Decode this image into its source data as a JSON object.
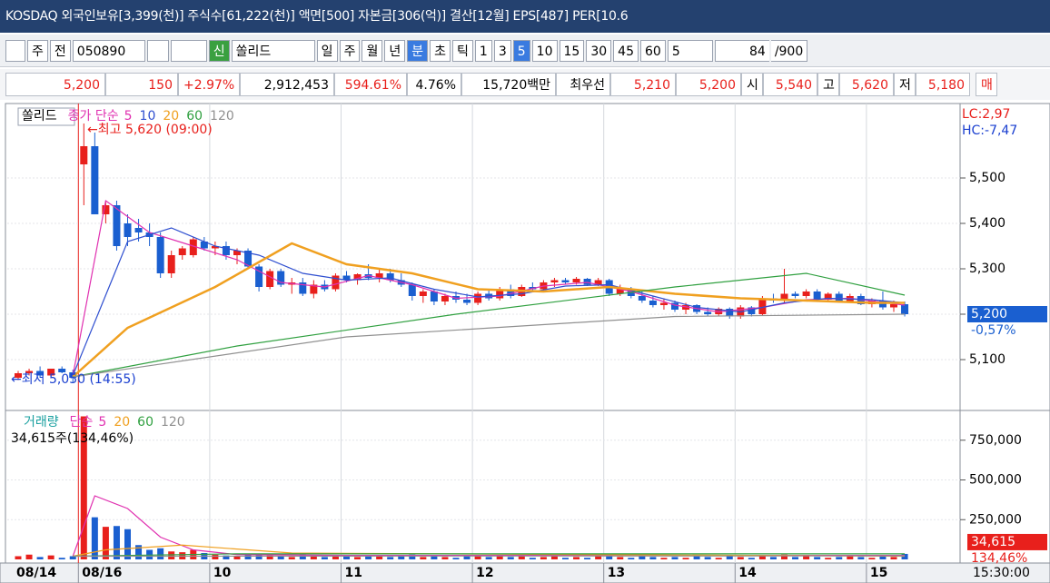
{
  "header": {
    "title": "KOSDAQ 외국인보유[3,399(천)] 주식수[61,222(천)] 액면[500] 자본금[306(억)] 결산[12월] EPS[487] PER[10.6"
  },
  "toolbar": {
    "items": [
      "주",
      "전",
      "050890",
      "신",
      "쏠리드",
      "일",
      "주",
      "월",
      "년",
      "분",
      "초",
      "틱",
      "1",
      "3",
      "5",
      "10",
      "15",
      "30",
      "45",
      "60",
      "5",
      "84",
      "/900"
    ]
  },
  "quote": {
    "items": [
      "5,200",
      "150",
      "+2.97%",
      "2,912,453",
      "594.61%",
      "4.76%",
      "15,720백만",
      "최우선",
      "5,210",
      "5,200",
      "시",
      "5,540",
      "고",
      "5,620",
      "저",
      "5,180",
      "매"
    ]
  },
  "chart_data": [
    {
      "type": "candlestick",
      "title": "쏠리드",
      "legend_title": "종가 단순",
      "up_color": "#e8201c",
      "down_color": "#1a5fd0",
      "ohlc": [
        [
          5060,
          5075,
          5055,
          5070
        ],
        [
          5070,
          5080,
          5065,
          5075
        ],
        [
          5075,
          5085,
          5060,
          5065
        ],
        [
          5065,
          5080,
          5060,
          5080
        ],
        [
          5080,
          5085,
          5070,
          5072
        ],
        [
          5072,
          5078,
          5050,
          5060
        ],
        [
          5530,
          5620,
          5440,
          5570
        ],
        [
          5570,
          5600,
          5420,
          5420
        ],
        [
          5420,
          5450,
          5400,
          5440
        ],
        [
          5440,
          5450,
          5340,
          5350
        ],
        [
          5400,
          5420,
          5350,
          5370
        ],
        [
          5390,
          5410,
          5360,
          5380
        ],
        [
          5380,
          5400,
          5350,
          5370
        ],
        [
          5370,
          5380,
          5280,
          5290
        ],
        [
          5290,
          5340,
          5280,
          5330
        ],
        [
          5330,
          5350,
          5320,
          5345
        ],
        [
          5330,
          5370,
          5325,
          5365
        ],
        [
          5360,
          5370,
          5340,
          5345
        ],
        [
          5345,
          5360,
          5330,
          5350
        ],
        [
          5350,
          5360,
          5320,
          5330
        ],
        [
          5330,
          5345,
          5310,
          5340
        ],
        [
          5340,
          5345,
          5300,
          5305
        ],
        [
          5305,
          5310,
          5250,
          5260
        ],
        [
          5260,
          5300,
          5255,
          5295
        ],
        [
          5295,
          5300,
          5260,
          5265
        ],
        [
          5265,
          5280,
          5245,
          5270
        ],
        [
          5270,
          5280,
          5240,
          5245
        ],
        [
          5245,
          5275,
          5235,
          5265
        ],
        [
          5265,
          5275,
          5250,
          5255
        ],
        [
          5255,
          5290,
          5250,
          5285
        ],
        [
          5285,
          5295,
          5270,
          5275
        ],
        [
          5275,
          5290,
          5265,
          5288
        ],
        [
          5288,
          5310,
          5275,
          5280
        ],
        [
          5280,
          5300,
          5270,
          5290
        ],
        [
          5290,
          5300,
          5270,
          5275
        ],
        [
          5275,
          5290,
          5260,
          5265
        ],
        [
          5265,
          5270,
          5230,
          5240
        ],
        [
          5240,
          5255,
          5225,
          5250
        ],
        [
          5250,
          5255,
          5220,
          5228
        ],
        [
          5228,
          5245,
          5220,
          5240
        ],
        [
          5240,
          5250,
          5225,
          5232
        ],
        [
          5232,
          5245,
          5220,
          5225
        ],
        [
          5225,
          5250,
          5220,
          5245
        ],
        [
          5245,
          5255,
          5230,
          5235
        ],
        [
          5235,
          5260,
          5230,
          5255
        ],
        [
          5255,
          5265,
          5235,
          5240
        ],
        [
          5240,
          5265,
          5238,
          5260
        ],
        [
          5260,
          5270,
          5250,
          5255
        ],
        [
          5255,
          5275,
          5250,
          5270
        ],
        [
          5270,
          5280,
          5260,
          5275
        ],
        [
          5275,
          5280,
          5265,
          5270
        ],
        [
          5270,
          5282,
          5265,
          5278
        ],
        [
          5278,
          5280,
          5262,
          5265
        ],
        [
          5265,
          5280,
          5262,
          5275
        ],
        [
          5275,
          5278,
          5240,
          5245
        ],
        [
          5245,
          5265,
          5240,
          5255
        ],
        [
          5255,
          5260,
          5235,
          5240
        ],
        [
          5240,
          5250,
          5225,
          5230
        ],
        [
          5230,
          5240,
          5215,
          5220
        ],
        [
          5220,
          5235,
          5210,
          5225
        ],
        [
          5225,
          5230,
          5205,
          5210
        ],
        [
          5210,
          5225,
          5200,
          5220
        ],
        [
          5220,
          5222,
          5200,
          5205
        ],
        [
          5205,
          5215,
          5195,
          5200
        ],
        [
          5200,
          5215,
          5195,
          5212
        ],
        [
          5212,
          5215,
          5190,
          5195
        ],
        [
          5195,
          5220,
          5190,
          5215
        ],
        [
          5215,
          5218,
          5195,
          5200
        ],
        [
          5200,
          5240,
          5198,
          5235
        ],
        [
          5235,
          5245,
          5225,
          5230
        ],
        [
          5230,
          5300,
          5225,
          5245
        ],
        [
          5245,
          5250,
          5235,
          5240
        ],
        [
          5240,
          5255,
          5235,
          5250
        ],
        [
          5250,
          5255,
          5230,
          5232
        ],
        [
          5232,
          5248,
          5228,
          5245
        ],
        [
          5245,
          5250,
          5225,
          5228
        ],
        [
          5228,
          5245,
          5225,
          5240
        ],
        [
          5240,
          5245,
          5220,
          5222
        ],
        [
          5222,
          5235,
          5215,
          5230
        ],
        [
          5230,
          5250,
          5210,
          5215
        ],
        [
          5215,
          5230,
          5205,
          5222
        ],
        [
          5222,
          5228,
          5195,
          5200
        ]
      ],
      "series": [
        {
          "name": "5",
          "color": "#e030b0",
          "x": [
            5,
            8,
            12,
            16,
            20,
            24,
            28,
            32,
            36,
            40,
            44,
            48,
            52,
            56,
            60,
            64,
            68,
            72,
            76,
            81
          ],
          "values": [
            5065,
            5450,
            5380,
            5350,
            5320,
            5270,
            5260,
            5285,
            5265,
            5235,
            5240,
            5262,
            5270,
            5250,
            5220,
            5205,
            5215,
            5232,
            5235,
            5220
          ]
        },
        {
          "name": "10",
          "color": "#2f4fd0",
          "x": [
            5,
            10,
            14,
            18,
            22,
            26,
            30,
            34,
            38,
            42,
            46,
            50,
            54,
            58,
            62,
            66,
            70,
            74,
            78,
            81
          ],
          "values": [
            5065,
            5360,
            5390,
            5350,
            5330,
            5290,
            5275,
            5280,
            5255,
            5238,
            5245,
            5262,
            5265,
            5240,
            5215,
            5205,
            5225,
            5235,
            5232,
            5225
          ]
        },
        {
          "name": "20",
          "color": "#f0a020",
          "x": [
            5,
            10,
            18,
            25,
            30,
            36,
            42,
            48,
            54,
            60,
            66,
            72,
            78,
            81
          ],
          "values": [
            5062,
            5170,
            5260,
            5356,
            5310,
            5290,
            5255,
            5250,
            5260,
            5245,
            5235,
            5230,
            5225,
            5225
          ]
        },
        {
          "name": "60",
          "color": "#30a040",
          "x": [
            5,
            20,
            40,
            60,
            72,
            81
          ],
          "values": [
            5062,
            5130,
            5200,
            5260,
            5290,
            5242
          ]
        },
        {
          "name": "120",
          "color": "#909090",
          "x": [
            5,
            30,
            60,
            81
          ],
          "values": [
            5062,
            5150,
            5195,
            5200
          ]
        }
      ],
      "ylim": [
        4992,
        5656
      ],
      "yticks": [
        {
          "value": 5100,
          "label": "5,100"
        },
        {
          "value": 5200,
          "label": "5,200"
        },
        {
          "value": 5300,
          "label": "5,300"
        },
        {
          "value": 5400,
          "label": "5,400"
        },
        {
          "value": 5500,
          "label": "5,500"
        }
      ],
      "annotations": [
        "←최고 5,620 (09:00)",
        "←최저 5,050 (14:55)",
        "LC:2,97",
        "HC:-7,47"
      ],
      "last_value": {
        "value": 5200,
        "label": "5,200"
      },
      "last_change": "-0,57%"
    },
    {
      "type": "bar",
      "title": "거래량",
      "legend_title": "단순",
      "categories": [
        "08/14",
        null,
        null,
        null,
        null,
        null,
        "08/16",
        null,
        null,
        null,
        null,
        null,
        null,
        null,
        null,
        null,
        null,
        null,
        "10",
        null,
        null,
        null,
        null,
        null,
        null,
        null,
        null,
        null,
        null,
        null,
        "11",
        null,
        null,
        null,
        null,
        null,
        null,
        null,
        null,
        null,
        null,
        null,
        "12",
        null,
        null,
        null,
        null,
        null,
        null,
        null,
        null,
        null,
        null,
        null,
        "13",
        null,
        null,
        null,
        null,
        null,
        null,
        null,
        null,
        null,
        null,
        null,
        "14",
        null,
        null,
        null,
        null,
        null,
        null,
        null,
        null,
        null,
        null,
        null,
        "15",
        null,
        null,
        null
      ],
      "values": [
        20000,
        30000,
        15000,
        25000,
        10000,
        20000,
        900000,
        265000,
        205000,
        210000,
        190000,
        90000,
        60000,
        70000,
        50000,
        45000,
        60000,
        40000,
        30000,
        25000,
        20000,
        30000,
        35000,
        25000,
        20000,
        15000,
        30000,
        20000,
        15000,
        25000,
        20000,
        15000,
        25000,
        20000,
        15000,
        20000,
        30000,
        15000,
        20000,
        15000,
        10000,
        20000,
        25000,
        15000,
        20000,
        15000,
        20000,
        10000,
        15000,
        20000,
        10000,
        15000,
        10000,
        20000,
        25000,
        15000,
        10000,
        20000,
        15000,
        10000,
        15000,
        10000,
        20000,
        15000,
        10000,
        20000,
        15000,
        10000,
        25000,
        15000,
        30000,
        15000,
        20000,
        15000,
        10000,
        15000,
        20000,
        15000,
        10000,
        20000,
        15000,
        34615
      ],
      "series": [
        {
          "name": "5",
          "color": "#e030b0",
          "x": [
            5,
            7,
            10,
            13,
            16,
            20,
            30,
            81
          ],
          "values": [
            20000,
            400000,
            320000,
            140000,
            60000,
            30000,
            25000,
            25000
          ]
        },
        {
          "name": "20",
          "color": "#f0a020",
          "x": [
            5,
            8,
            15,
            25,
            81
          ],
          "values": [
            20000,
            60000,
            90000,
            40000,
            20000
          ]
        },
        {
          "name": "60",
          "color": "#30a040",
          "x": [
            5,
            20,
            81
          ],
          "values": [
            20000,
            35000,
            35000
          ]
        },
        {
          "name": "120",
          "color": "#909090",
          "x": [
            5,
            81
          ],
          "values": [
            20000,
            22000
          ]
        }
      ],
      "ylim": [
        0,
        920000
      ],
      "yticks": [
        {
          "value": 250000,
          "label": "250,000"
        },
        {
          "value": 500000,
          "label": "500,000"
        },
        {
          "value": 750000,
          "label": "750,000"
        }
      ],
      "annotation": "34,615주(134,46%)",
      "last_value": {
        "value": 34615,
        "label": "34,615"
      },
      "last_pct": "134,46%",
      "time_label": "15:30:00"
    }
  ]
}
